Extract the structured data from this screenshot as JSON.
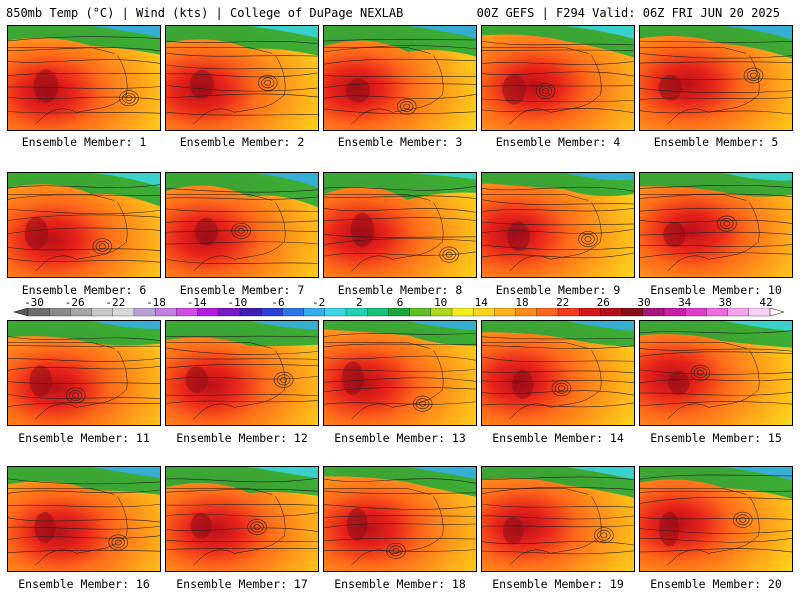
{
  "header": {
    "title": "850mb Temp (°C) | Wind (kts) | College of DuPage NEXLAB",
    "run": "00Z GEFS | F294 Valid: 06Z FRI JUN 20 2025"
  },
  "member_label_prefix": "Ensemble Member:",
  "members": [
    {
      "number": "1",
      "label": "Ensemble Member: 1"
    },
    {
      "number": "2",
      "label": "Ensemble Member: 2"
    },
    {
      "number": "3",
      "label": "Ensemble Member: 3"
    },
    {
      "number": "4",
      "label": "Ensemble Member: 4"
    },
    {
      "number": "5",
      "label": "Ensemble Member: 5"
    },
    {
      "number": "6",
      "label": "Ensemble Member: 6"
    },
    {
      "number": "7",
      "label": "Ensemble Member: 7"
    },
    {
      "number": "8",
      "label": "Ensemble Member: 8"
    },
    {
      "number": "9",
      "label": "Ensemble Member: 9"
    },
    {
      "number": "10",
      "label": "Ensemble Member: 10"
    },
    {
      "number": "11",
      "label": "Ensemble Member: 11"
    },
    {
      "number": "12",
      "label": "Ensemble Member: 12"
    },
    {
      "number": "13",
      "label": "Ensemble Member: 13"
    },
    {
      "number": "14",
      "label": "Ensemble Member: 14"
    },
    {
      "number": "15",
      "label": "Ensemble Member: 15"
    },
    {
      "number": "16",
      "label": "Ensemble Member: 16"
    },
    {
      "number": "17",
      "label": "Ensemble Member: 17"
    },
    {
      "number": "18",
      "label": "Ensemble Member: 18"
    },
    {
      "number": "19",
      "label": "Ensemble Member: 19"
    },
    {
      "number": "20",
      "label": "Ensemble Member: 20"
    }
  ],
  "colorbar": {
    "tick_labels": [
      "-30",
      "-26",
      "-22",
      "-18",
      "-14",
      "-10",
      "-6",
      "-2",
      "2",
      "6",
      "10",
      "14",
      "18",
      "22",
      "26",
      "30",
      "34",
      "38",
      "42"
    ],
    "colors": [
      "#6e6e6e",
      "#8a8a8a",
      "#a6a6a6",
      "#c8c8c8",
      "#d9d9d9",
      "#b5a3d6",
      "#c27fe6",
      "#d24be6",
      "#b31ae0",
      "#7a19c9",
      "#3f1fb3",
      "#2c3fd6",
      "#2d74e8",
      "#35aef0",
      "#3ad6e6",
      "#1fd4b2",
      "#15c27a",
      "#1aa83a",
      "#5fbf26",
      "#b0d61f",
      "#f3ef1a",
      "#ffd319",
      "#ffb119",
      "#ff8c1a",
      "#ff661a",
      "#f33b1a",
      "#d9151a",
      "#b70f1a",
      "#8c0d18",
      "#a8137a",
      "#c81ea8",
      "#e03ccc",
      "#f06ae0",
      "#f7a3ef",
      "#fbd0f7"
    ],
    "colors_note_excluded": false
  }
}
